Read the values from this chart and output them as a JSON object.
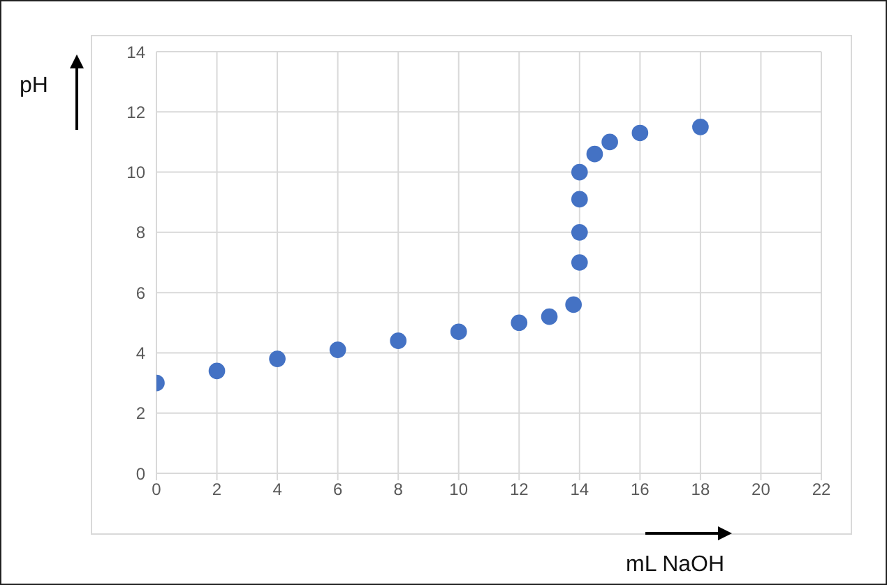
{
  "chart_data": {
    "type": "scatter",
    "xlabel": "mL NaOH",
    "ylabel": "pH",
    "x": [
      0,
      2,
      4,
      6,
      8,
      10,
      12,
      13,
      13.8,
      14,
      14,
      14,
      14,
      14.5,
      15,
      16,
      18
    ],
    "values": [
      3.0,
      3.4,
      3.8,
      4.1,
      4.4,
      4.7,
      5.0,
      5.2,
      5.6,
      7.0,
      8.0,
      9.1,
      10.0,
      10.6,
      11.0,
      11.3,
      11.5
    ],
    "color": "#4472c4",
    "marker": "circle",
    "xlim": [
      0,
      22
    ],
    "xticks": [
      0,
      2,
      4,
      6,
      8,
      10,
      12,
      14,
      16,
      18,
      20,
      22
    ],
    "ylim": [
      0,
      14
    ],
    "yticks": [
      0,
      2,
      4,
      6,
      8,
      10,
      12,
      14
    ],
    "grid": true,
    "legend": false
  }
}
